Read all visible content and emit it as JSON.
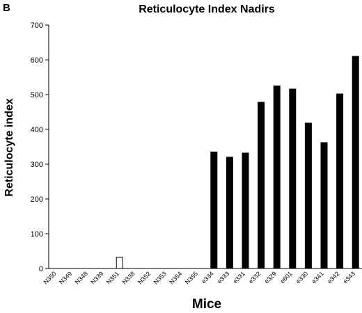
{
  "panel_label": "B",
  "chart_data": {
    "type": "bar",
    "title": "Reticulocyte Index Nadirs",
    "xlabel": "Mice",
    "ylabel": "Reticulocyte index",
    "ylim": [
      0,
      700
    ],
    "yticks": [
      0,
      100,
      200,
      300,
      400,
      500,
      600,
      700
    ],
    "grid": false,
    "categories": [
      "N350",
      "N349",
      "N348",
      "N339",
      "N351",
      "N338",
      "N352",
      "N353",
      "N354",
      "N355",
      "e334",
      "e333",
      "e331",
      "e332",
      "e329",
      "e601",
      "e330",
      "e341",
      "e342",
      "e343"
    ],
    "values": [
      0,
      0,
      0,
      0,
      32,
      0,
      0,
      0,
      0,
      0,
      335,
      320,
      332,
      478,
      525,
      516,
      418,
      362,
      502,
      610
    ],
    "bar_fill": [
      "#ffffff",
      "#ffffff",
      "#ffffff",
      "#ffffff",
      "#ffffff",
      "#ffffff",
      "#ffffff",
      "#ffffff",
      "#ffffff",
      "#ffffff",
      "#000000",
      "#000000",
      "#000000",
      "#000000",
      "#000000",
      "#000000",
      "#000000",
      "#000000",
      "#000000",
      "#000000"
    ]
  }
}
